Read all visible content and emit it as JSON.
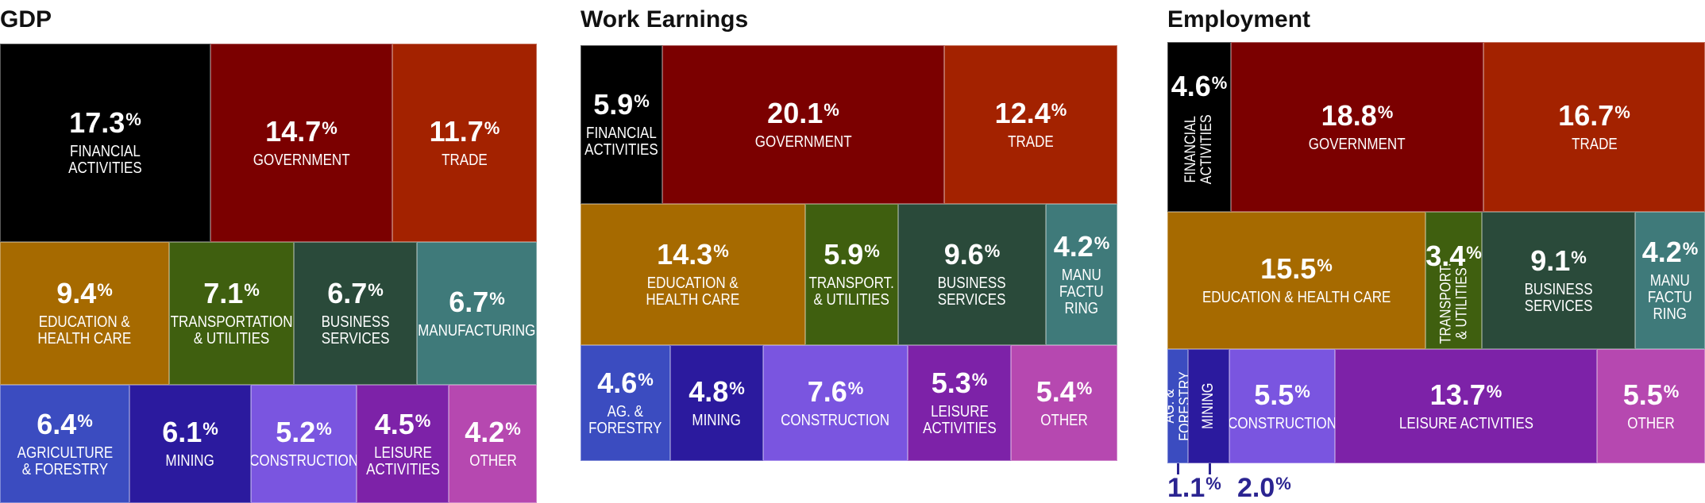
{
  "chart_data": [
    {
      "type": "treemap",
      "title": "GDP",
      "items": [
        {
          "label": "FINANCIAL\nACTIVITIES",
          "value": 17.3,
          "color": "#000000"
        },
        {
          "label": "GOVERNMENT",
          "value": 14.7,
          "color": "#7b0000"
        },
        {
          "label": "TRADE",
          "value": 11.7,
          "color": "#a32200"
        },
        {
          "label": "EDUCATION &\nHEALTH CARE",
          "value": 9.4,
          "color": "#a66a00"
        },
        {
          "label": "TRANSPORTATION\n& UTILITIES",
          "value": 7.1,
          "color": "#3f5f0f"
        },
        {
          "label": "BUSINESS\nSERVICES",
          "value": 6.7,
          "color": "#2a4a3a"
        },
        {
          "label": "MANUFACTURING",
          "value": 6.7,
          "color": "#3f7a7a"
        },
        {
          "label": "AGRICULTURE\n& FORESTRY",
          "value": 6.4,
          "color": "#3b4cc0"
        },
        {
          "label": "MINING",
          "value": 6.1,
          "color": "#2b1a9e"
        },
        {
          "label": "CONSTRUCTION",
          "value": 5.2,
          "color": "#7a55e0"
        },
        {
          "label": "LEISURE\nACTIVITIES",
          "value": 4.5,
          "color": "#7d22a8"
        },
        {
          "label": "OTHER",
          "value": 4.2,
          "color": "#b648b0"
        }
      ]
    },
    {
      "type": "treemap",
      "title": "Work Earnings",
      "items": [
        {
          "label": "FINANCIAL\nACTIVITIES",
          "value": 5.9,
          "color": "#000000"
        },
        {
          "label": "GOVERNMENT",
          "value": 20.1,
          "color": "#7b0000"
        },
        {
          "label": "TRADE",
          "value": 12.4,
          "color": "#a32200"
        },
        {
          "label": "EDUCATION &\nHEALTH CARE",
          "value": 14.3,
          "color": "#a66a00"
        },
        {
          "label": "TRANSPORT.\n& UTILITIES",
          "value": 5.9,
          "color": "#3f5f0f"
        },
        {
          "label": "BUSINESS\nSERVICES",
          "value": 9.6,
          "color": "#2a4a3a"
        },
        {
          "label": "MANU\nFACTU\nRING",
          "value": 4.2,
          "color": "#3f7a7a"
        },
        {
          "label": "AG. &\nFORESTRY",
          "value": 4.6,
          "color": "#3b4cc0"
        },
        {
          "label": "MINING",
          "value": 4.8,
          "color": "#2b1a9e"
        },
        {
          "label": "CONSTRUCTION",
          "value": 7.6,
          "color": "#7a55e0"
        },
        {
          "label": "LEISURE\nACTIVITIES",
          "value": 5.3,
          "color": "#7d22a8"
        },
        {
          "label": "OTHER",
          "value": 5.4,
          "color": "#b648b0"
        }
      ]
    },
    {
      "type": "treemap",
      "title": "Employment",
      "items": [
        {
          "label": "FINANCIAL\nACTIVITIES",
          "value": 4.6,
          "color": "#000000"
        },
        {
          "label": "GOVERNMENT",
          "value": 18.8,
          "color": "#7b0000"
        },
        {
          "label": "TRADE",
          "value": 16.7,
          "color": "#a32200"
        },
        {
          "label": "EDUCATION & HEALTH CARE",
          "value": 15.5,
          "color": "#a66a00"
        },
        {
          "label": "TRANSPORT.\n& UTILITIES",
          "value": 3.4,
          "color": "#3f5f0f"
        },
        {
          "label": "BUSINESS\nSERVICES",
          "value": 9.1,
          "color": "#2a4a3a"
        },
        {
          "label": "MANU\nFACTU\nRING",
          "value": 4.2,
          "color": "#3f7a7a"
        },
        {
          "label": "AG. & FORESTRY",
          "value": 1.1,
          "color": "#3b4cc0"
        },
        {
          "label": "MINING",
          "value": 2.0,
          "color": "#2b1a9e"
        },
        {
          "label": "CONSTRUCTION",
          "value": 5.5,
          "color": "#7a55e0"
        },
        {
          "label": "LEISURE ACTIVITIES",
          "value": 13.7,
          "color": "#7d22a8"
        },
        {
          "label": "OTHER",
          "value": 5.5,
          "color": "#b648b0"
        }
      ]
    }
  ]
}
